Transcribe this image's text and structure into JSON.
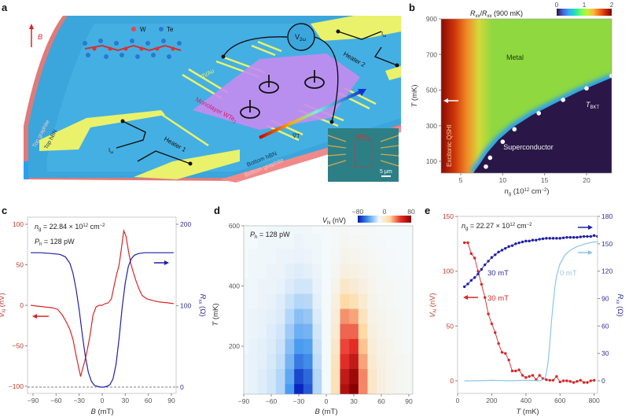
{
  "panel_letters": {
    "a": "a",
    "b": "b",
    "c": "c",
    "d": "d",
    "e": "e"
  },
  "panel_a": {
    "field_label": "B",
    "legend_w": "W",
    "legend_te": "Te",
    "contacts": "Ti/Au",
    "voltmeter": {
      "main": "V",
      "sub": "2ω"
    },
    "current_1": {
      "main": "I",
      "sub": "ω"
    },
    "current_2": {
      "main": "I",
      "sub": "ω"
    },
    "heater_1": "Heater 1",
    "heater_2": "Heater 2",
    "flake": {
      "main": "Monolayer WTe",
      "sub": "2"
    },
    "gradient": "∇T",
    "top_graphite": "Top graphite",
    "top_hbn": "Top hBN",
    "bottom_hbn": "Bottom hBN",
    "bottom_graphite": "Bottom graphite",
    "inset_label": {
      "main": "WTe",
      "sub": "2"
    },
    "scale_bar": "5 μm",
    "colors": {
      "slab": "#3aa6dc",
      "pads": "#e9f26a",
      "flake": "#c58cf0",
      "graphite": "#e07a7a"
    }
  },
  "chart_data": [
    {
      "panel": "b",
      "type": "heatmap",
      "colorbar": {
        "label": {
          "a": "R",
          "a_sub": "xx",
          "b": "/",
          "c": "R",
          "c_sub": "xx",
          "d": " (900 mK)"
        },
        "ticks": [
          0,
          1,
          2
        ],
        "range": [
          0,
          2
        ],
        "colormap": [
          "#30123b",
          "#4662d7",
          "#36aaf9",
          "#1ae4b6",
          "#72fe5e",
          "#c7ef34",
          "#fabA39",
          "#f66b19",
          "#ca2a04",
          "#7a0403"
        ]
      },
      "xlabel": {
        "main": "n",
        "sub": "g",
        "unit": " (10",
        "sup": "12",
        "unit2": " cm",
        "sup2": "−2",
        "close": ")"
      },
      "ylabel": {
        "main": "T",
        "unit": " (mK)"
      },
      "xlim": [
        2.7,
        23
      ],
      "ylim": [
        35,
        900
      ],
      "xticks": [
        5,
        10,
        15,
        20
      ],
      "yticks": [
        100,
        300,
        500,
        700,
        900
      ],
      "regions": {
        "metal": "Metal",
        "superconductor": "Superconductor",
        "qshi": "Excitonic QSHI"
      },
      "tbkt_label": {
        "main": "T",
        "sub": "BKT"
      },
      "tbkt_points": [
        [
          8.0,
          70
        ],
        [
          8.5,
          120
        ],
        [
          10.0,
          210
        ],
        [
          11.4,
          280
        ],
        [
          14.3,
          370
        ],
        [
          17.2,
          445
        ],
        [
          20.0,
          510
        ],
        [
          23.0,
          580
        ]
      ],
      "phase_boundary": [
        [
          6.5,
          35
        ],
        [
          7.2,
          80
        ],
        [
          8.2,
          150
        ],
        [
          9.5,
          220
        ],
        [
          11.2,
          290
        ],
        [
          13.5,
          360
        ],
        [
          16,
          420
        ],
        [
          19,
          490
        ],
        [
          23,
          570
        ]
      ]
    },
    {
      "panel": "c",
      "type": "line",
      "annotations": {
        "ng": {
          "main": "n",
          "sub": "g",
          "rest": " = 22.84 × 10",
          "sup": "12",
          "rest2": " cm",
          "sup2": "−2"
        },
        "ph": {
          "main": "P",
          "sub": "h",
          "rest": " = 128 pW"
        }
      },
      "xlabel": {
        "main": "B",
        "unit": " (mT)"
      },
      "ylabel_left": {
        "main": "V",
        "sub": "N",
        "unit": " (nV)"
      },
      "ylabel_right": {
        "main": "R",
        "sub": "xx",
        "unit": " (Ω)"
      },
      "xlim": [
        -95,
        95
      ],
      "ylim_left": [
        -108,
        108
      ],
      "ylim_right": [
        0,
        200
      ],
      "xticks": [
        -90,
        -60,
        -30,
        0,
        30,
        60,
        90
      ],
      "yticks_left": [
        -100,
        -50,
        0,
        50,
        100
      ],
      "yticks_right": [
        0,
        100,
        200
      ],
      "series": [
        {
          "axis": "left",
          "color": "#d62728",
          "x": [
            -93,
            -85,
            -75,
            -65,
            -58,
            -52,
            -47,
            -42,
            -38,
            -34,
            -30,
            -28,
            -26,
            -23,
            -20,
            -16,
            -12,
            -8,
            -4,
            0,
            4,
            8,
            12,
            15,
            18,
            22,
            25,
            28,
            31,
            34,
            37,
            40,
            44,
            48,
            52,
            58,
            65,
            75,
            85,
            93
          ],
          "y": [
            0,
            -1,
            -2,
            -3,
            -5,
            -12,
            -20,
            -30,
            -42,
            -62,
            -80,
            -88,
            -80,
            -70,
            -58,
            -38,
            -12,
            -2,
            0,
            0,
            2,
            3,
            8,
            22,
            35,
            50,
            70,
            92,
            85,
            68,
            52,
            42,
            30,
            20,
            12,
            8,
            6,
            4,
            3,
            2
          ]
        },
        {
          "axis": "right",
          "color": "#1f1fa8",
          "x": [
            -93,
            -80,
            -65,
            -55,
            -48,
            -42,
            -38,
            -34,
            -30,
            -26,
            -22,
            -18,
            -14,
            -10,
            -6,
            -2,
            2,
            6,
            10,
            14,
            18,
            22,
            26,
            30,
            34,
            38,
            42,
            47,
            55,
            65,
            80,
            93
          ],
          "y": [
            165,
            165,
            164,
            163,
            160,
            152,
            140,
            120,
            95,
            65,
            38,
            18,
            7,
            2,
            1,
            0,
            0,
            1,
            3,
            10,
            28,
            60,
            98,
            128,
            148,
            158,
            162,
            164,
            165,
            165,
            165,
            165
          ]
        }
      ],
      "dashed_reference_left": -100
    },
    {
      "panel": "d",
      "type": "heatmap",
      "annotation": {
        "main": "P",
        "sub": "h",
        "rest": " = 128 pW"
      },
      "colorbar": {
        "label": {
          "main": "V",
          "sub": "N",
          "unit": " (nV)"
        },
        "ticks": [
          -80,
          0,
          80
        ],
        "range": [
          -80,
          80
        ],
        "colormap": [
          "#0015b8",
          "#4a9cf0",
          "#f4f9fb",
          "#ffd9a0",
          "#e8302a",
          "#8a0000"
        ]
      },
      "xlabel": {
        "main": "B",
        "unit": " (mT)"
      },
      "ylabel": {
        "main": "T",
        "unit": " (mK)"
      },
      "xlim": [
        -95,
        95
      ],
      "ylim": [
        40,
        600
      ],
      "xticks": [
        -90,
        -60,
        -30,
        0,
        30,
        60,
        90
      ],
      "yticks": [
        200,
        400,
        600
      ],
      "x": [
        -90,
        -80,
        -70,
        -60,
        -50,
        -40,
        -30,
        -20,
        -10,
        0,
        10,
        20,
        30,
        40,
        50,
        60,
        70,
        80,
        90
      ],
      "y": [
        50,
        100,
        150,
        200,
        250,
        300,
        350,
        400,
        450,
        500,
        550,
        600
      ],
      "z": [
        [
          -2,
          -3,
          -5,
          -8,
          -15,
          -40,
          -75,
          -60,
          -15,
          0,
          20,
          70,
          80,
          40,
          15,
          8,
          5,
          3,
          2
        ],
        [
          -2,
          -3,
          -5,
          -8,
          -15,
          -35,
          -65,
          -55,
          -15,
          0,
          20,
          65,
          75,
          40,
          15,
          8,
          5,
          3,
          2
        ],
        [
          -2,
          -3,
          -4,
          -7,
          -12,
          -30,
          -50,
          -45,
          -12,
          0,
          18,
          55,
          65,
          35,
          12,
          7,
          4,
          3,
          2
        ],
        [
          -1,
          -3,
          -4,
          -6,
          -10,
          -25,
          -40,
          -38,
          -10,
          0,
          15,
          50,
          55,
          30,
          10,
          6,
          4,
          2,
          1
        ],
        [
          -1,
          -2,
          -3,
          -5,
          -8,
          -20,
          -32,
          -30,
          -8,
          0,
          12,
          45,
          45,
          25,
          8,
          5,
          3,
          2,
          1
        ],
        [
          -1,
          -2,
          -3,
          -4,
          -6,
          -15,
          -25,
          -22,
          -6,
          0,
          10,
          38,
          35,
          18,
          6,
          4,
          3,
          2,
          1
        ],
        [
          -1,
          -1,
          -2,
          -3,
          -5,
          -10,
          -15,
          -14,
          -4,
          0,
          8,
          25,
          20,
          12,
          5,
          3,
          2,
          1,
          1
        ],
        [
          -1,
          -1,
          -2,
          -2,
          -3,
          -6,
          -8,
          -8,
          -3,
          0,
          5,
          15,
          12,
          8,
          4,
          2,
          2,
          1,
          1
        ],
        [
          0,
          -1,
          -1,
          -2,
          -2,
          -4,
          -5,
          -4,
          -2,
          0,
          3,
          8,
          7,
          5,
          3,
          2,
          1,
          1,
          0
        ],
        [
          0,
          -1,
          -1,
          -1,
          -2,
          -2,
          -3,
          -2,
          -1,
          0,
          2,
          5,
          4,
          3,
          2,
          1,
          1,
          0,
          0
        ],
        [
          0,
          0,
          -1,
          -1,
          -1,
          -1,
          -2,
          -1,
          -1,
          0,
          1,
          3,
          2,
          2,
          1,
          1,
          0,
          0,
          0
        ],
        [
          0,
          0,
          0,
          -1,
          -1,
          -1,
          -1,
          -1,
          0,
          0,
          1,
          2,
          1,
          1,
          1,
          0,
          0,
          0,
          0
        ]
      ]
    },
    {
      "panel": "e",
      "type": "line",
      "annotation": {
        "main": "n",
        "sub": "g",
        "rest": " = 22.27 × 10",
        "sup": "12",
        "rest2": " cm",
        "sup2": "−2"
      },
      "xlabel": {
        "main": "T",
        "unit": " (mK)"
      },
      "ylabel_left": {
        "main": "V",
        "sub": "N",
        "unit": " (nV)"
      },
      "ylabel_right": {
        "main": "R",
        "sub": "xx",
        "unit": " (Ω)"
      },
      "xlim": [
        0,
        820
      ],
      "ylim_left": [
        -12,
        150
      ],
      "ylim_right": [
        0,
        180
      ],
      "xticks": [
        0,
        200,
        400,
        600,
        800
      ],
      "yticks_left": [
        0,
        50,
        100,
        150
      ],
      "yticks_right": [
        0,
        30,
        60,
        90,
        120,
        150,
        180
      ],
      "series": [
        {
          "name": "30 mT",
          "axis": "left",
          "color": "#d62728",
          "markers": true,
          "x": [
            40,
            60,
            80,
            100,
            120,
            140,
            160,
            180,
            200,
            220,
            240,
            260,
            280,
            300,
            320,
            340,
            360,
            380,
            400,
            420,
            440,
            460,
            480,
            500,
            520,
            540,
            560,
            580,
            600,
            620,
            640,
            660,
            680,
            700,
            720,
            740,
            760,
            780,
            800
          ],
          "y": [
            126,
            126,
            116,
            112,
            100,
            88,
            76,
            61,
            52,
            44,
            34,
            26,
            25,
            19,
            9,
            9,
            10,
            5,
            3,
            4,
            5,
            1,
            5,
            2,
            1,
            0.5,
            0.5,
            4,
            -1,
            0,
            0,
            -0.5,
            -1.5,
            -0.5,
            0.5,
            -1.5,
            -1.5,
            0,
            0.5
          ]
        },
        {
          "name": "30 mT",
          "axis": "right",
          "color": "#1f1fa8",
          "markers": true,
          "x": [
            40,
            60,
            80,
            100,
            120,
            140,
            160,
            180,
            200,
            220,
            240,
            260,
            280,
            300,
            320,
            340,
            360,
            380,
            400,
            420,
            440,
            460,
            480,
            500,
            520,
            540,
            560,
            580,
            600,
            620,
            640,
            660,
            680,
            700,
            720,
            740,
            760,
            780,
            800,
            820
          ],
          "y": [
            103,
            106,
            110,
            113,
            117,
            122,
            127,
            131,
            135,
            138,
            141,
            143,
            145,
            147,
            148,
            150,
            151,
            152,
            153,
            153,
            154,
            154,
            155,
            155.5,
            156,
            156,
            156,
            156,
            156,
            156.5,
            157,
            157,
            157,
            157,
            157.5,
            158,
            158,
            158,
            159,
            158
          ]
        },
        {
          "name": "0 mT",
          "axis": "right",
          "color": "#8fc4e6",
          "markers": false,
          "x": [
            40,
            100,
            200,
            300,
            400,
            480,
            510,
            520,
            530,
            540,
            550,
            560,
            570,
            580,
            600,
            630,
            660,
            700,
            750,
            800,
            820
          ],
          "y": [
            0,
            0,
            0.5,
            0,
            0.5,
            0,
            2,
            8,
            20,
            40,
            65,
            85,
            102,
            115,
            128,
            138,
            143,
            147,
            150,
            152,
            152
          ]
        }
      ],
      "series_labels": {
        "blue": "30 mT",
        "lightblue": "0 mT",
        "red": "30 mT"
      }
    }
  ]
}
